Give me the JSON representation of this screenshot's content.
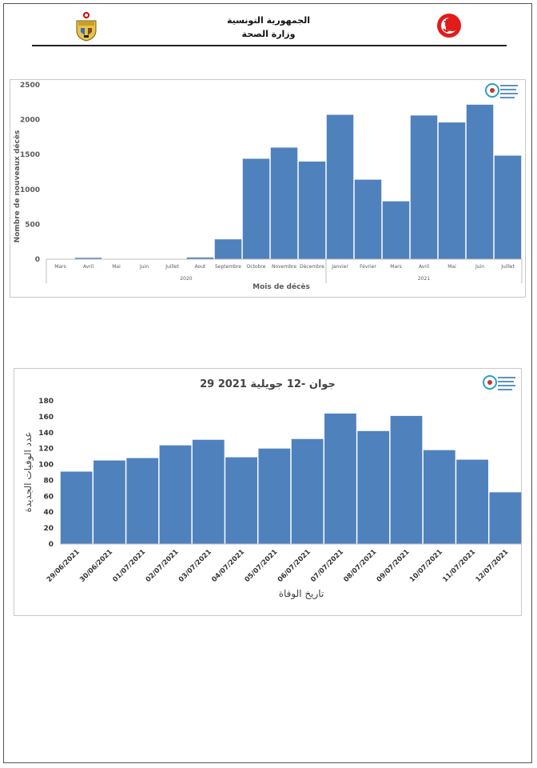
{
  "header": {
    "country": "الجمهورية التونسية",
    "ministry": "وزارة الصحة"
  },
  "colors": {
    "bar": "#4F81BD",
    "axis": "#BFBFBF",
    "text": "#595959"
  },
  "icons": [
    "tunisia-coat-of-arms-logo",
    "crescent-anchor-logo",
    "institute-logo"
  ],
  "chart_data": [
    {
      "type": "bar",
      "title": "",
      "xlabel": "Mois de décès",
      "ylabel": "Nombre de nouveaux décès",
      "ylim": [
        0,
        2500
      ],
      "yticks": [
        0,
        500,
        1000,
        1500,
        2000,
        2500
      ],
      "grid": false,
      "legend": "none",
      "categories": [
        "Mars",
        "Avril",
        "Mai",
        "Juin",
        "Juillet",
        "Aout",
        "Septembre",
        "Octobre",
        "Novembre",
        "Décembre",
        "Janvier",
        "Février",
        "Mars",
        "Avril",
        "Mai",
        "Juin",
        "Juillet"
      ],
      "groups": [
        {
          "label": "2020",
          "count": 10
        },
        {
          "label": "2021",
          "count": 7
        }
      ],
      "values": [
        2,
        20,
        2,
        2,
        5,
        25,
        285,
        1440,
        1600,
        1400,
        2070,
        1140,
        830,
        2060,
        1960,
        2215,
        1485
      ]
    },
    {
      "type": "bar",
      "title": "29 جوان -12 جويلية 2021",
      "xlabel": "تاريخ الوفاة",
      "ylabel": "عدد الوفيات الجديدة",
      "ylim": [
        0,
        180
      ],
      "yticks": [
        0,
        20,
        40,
        60,
        80,
        100,
        120,
        140,
        160,
        180
      ],
      "grid": false,
      "legend": "none",
      "categories": [
        "29/06/2021",
        "30/06/2021",
        "01/07/2021",
        "02/07/2021",
        "03/07/2021",
        "04/07/2021",
        "05/07/2021",
        "06/07/2021",
        "07/07/2021",
        "08/07/2021",
        "09/07/2021",
        "10/07/2021",
        "11/07/2021",
        "12/07/2021"
      ],
      "values": [
        91,
        105,
        108,
        124,
        131,
        109,
        120,
        132,
        164,
        142,
        161,
        118,
        106,
        65
      ]
    }
  ]
}
